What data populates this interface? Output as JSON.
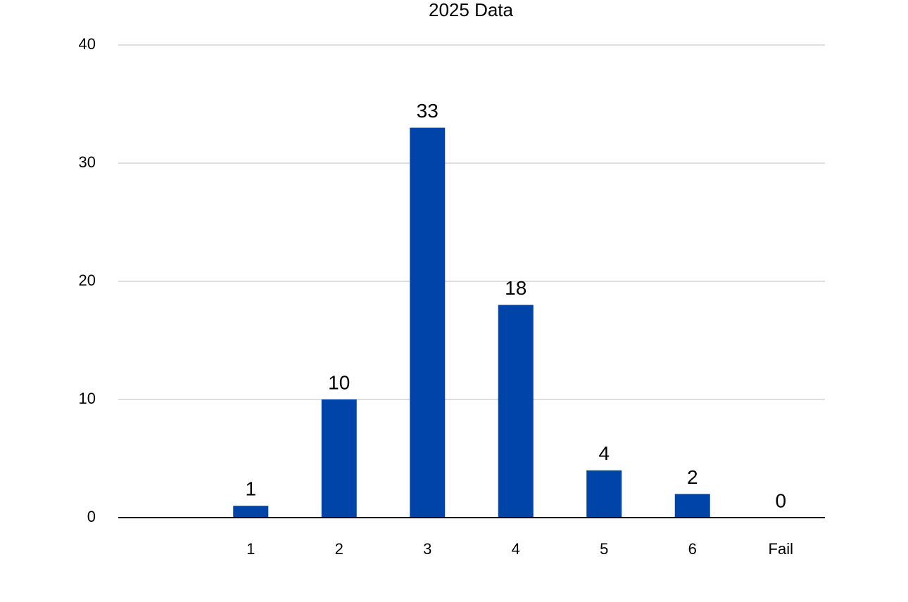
{
  "chart_data": {
    "type": "bar",
    "title": "2025 Data",
    "categories": [
      null,
      "1",
      "2",
      "3",
      "4",
      "5",
      "6",
      "Fail"
    ],
    "values": [
      null,
      1,
      10,
      33,
      18,
      4,
      2,
      0
    ],
    "color": "#0044aa",
    "ylim": [
      0,
      40
    ],
    "yticks": [
      0,
      10,
      20,
      30,
      40
    ],
    "grid": true
  }
}
